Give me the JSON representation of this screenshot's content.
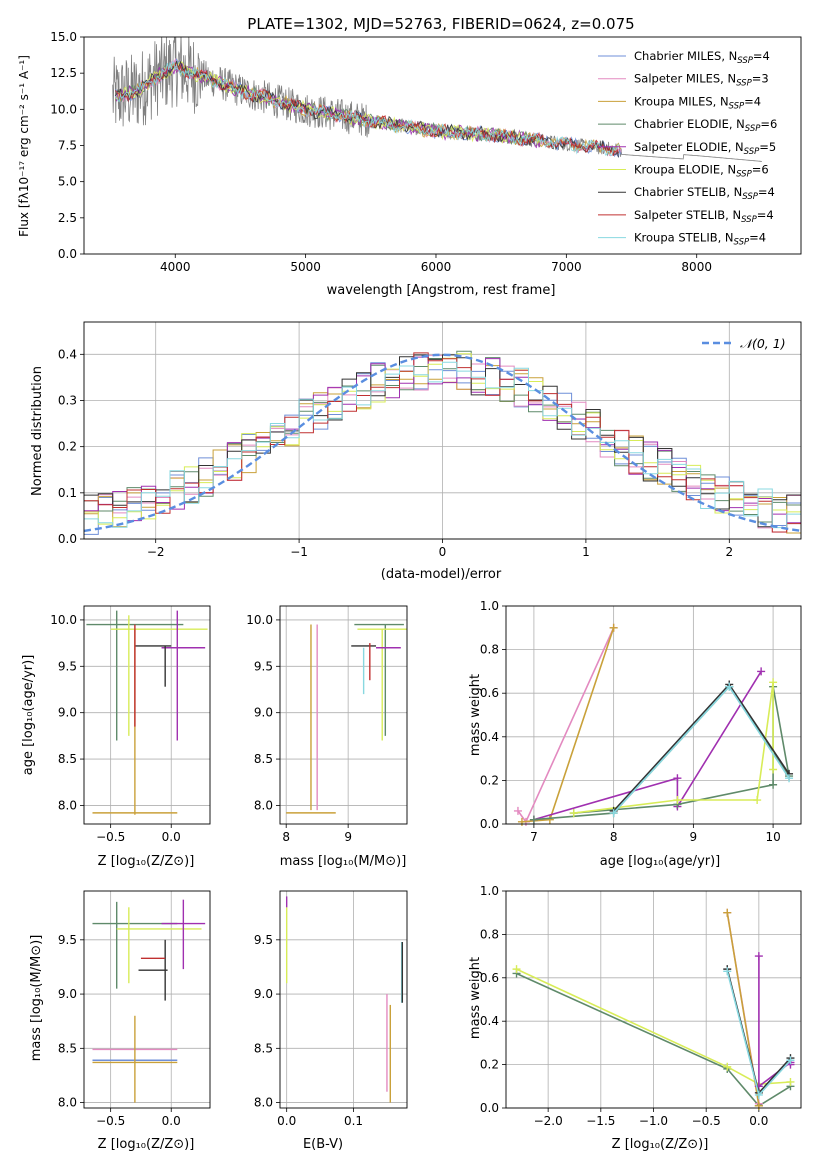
{
  "colors": {
    "Chabrier MILES": "#6f8fd8",
    "Salpeter MILES": "#e38ac0",
    "Kroupa MILES": "#c9a13a",
    "Chabrier ELODIE": "#5f8a6a",
    "Salpeter ELODIE": "#a030b0",
    "Kroupa ELODIE": "#d8ec58",
    "Chabrier STELIB": "#333333",
    "Salpeter STELIB": "#c03030",
    "Kroupa STELIB": "#88d8e0",
    "data": "#7f7f7f",
    "normal": "#5a8ee0"
  },
  "chart_data": [
    {
      "type": "line",
      "title": "PLATE=1302, MJD=52763, FIBERID=0624, z=0.075",
      "xlabel": "wavelength [Angstrom, rest frame]",
      "ylabel": "Flux [fλ10⁻¹⁷ erg cm⁻² s⁻¹ A⁻¹]",
      "xlim": [
        3300,
        8800
      ],
      "ylim": [
        0,
        15
      ],
      "xticks": [
        "4000",
        "5000",
        "6000",
        "7000",
        "8000"
      ],
      "yticks": [
        "0.0",
        "2.5",
        "5.0",
        "7.5",
        "10.0",
        "12.5",
        "15.0"
      ],
      "legend_position": "top-right",
      "legend": [
        {
          "name": "Chabrier MILES, N",
          "sub": "SSP",
          "tail": "=4"
        },
        {
          "name": "Salpeter MILES, N",
          "sub": "SSP",
          "tail": "=3"
        },
        {
          "name": "Kroupa MILES, N",
          "sub": "SSP",
          "tail": "=4"
        },
        {
          "name": "Chabrier ELODIE, N",
          "sub": "SSP",
          "tail": "=6"
        },
        {
          "name": "Salpeter ELODIE, N",
          "sub": "SSP",
          "tail": "=5"
        },
        {
          "name": "Kroupa ELODIE, N",
          "sub": "SSP",
          "tail": "=6"
        },
        {
          "name": "Chabrier STELIB, N",
          "sub": "SSP",
          "tail": "=4"
        },
        {
          "name": "Salpeter STELIB, N",
          "sub": "SSP",
          "tail": "=4"
        },
        {
          "name": "Kroupa STELIB, N",
          "sub": "SSP",
          "tail": "=4"
        }
      ],
      "model_envelope": {
        "x": [
          3500,
          3700,
          3850,
          4000,
          4100,
          4300,
          4500,
          5000,
          5500,
          6000,
          6500,
          7000,
          7400,
          8000,
          8500
        ],
        "y": [
          10.8,
          11.2,
          12.2,
          13.0,
          12.6,
          12.0,
          11.3,
          10.0,
          9.2,
          8.5,
          8.2,
          7.6,
          7.2,
          6.8,
          6.4
        ]
      }
    },
    {
      "type": "line",
      "xlabel": "(data-model)/error",
      "ylabel": "Normed distribution",
      "xlim": [
        -2.5,
        2.5
      ],
      "ylim": [
        0,
        0.47
      ],
      "xticks": [
        "−2",
        "−1",
        "0",
        "1",
        "2"
      ],
      "yticks": [
        "0.0",
        "0.1",
        "0.2",
        "0.3",
        "0.4"
      ],
      "legend_position": "top-right",
      "legend": [
        {
          "name": "𝒩(0, 1)"
        }
      ],
      "series": [
        {
          "type": "gaussian",
          "mean": 0,
          "sigma": 1
        }
      ]
    },
    {
      "type": "scatter",
      "xlabel": "Z [log₁₀(Z/Z⊙)]",
      "ylabel": "age  [log₁₀(age/yr)]",
      "xlim": [
        -0.72,
        0.32
      ],
      "ylim": [
        7.8,
        10.15
      ],
      "xticks": [
        "−0.5",
        "0.0"
      ],
      "yticks": [
        "8.0",
        "8.5",
        "9.0",
        "9.5",
        "10.0"
      ],
      "points": [
        {
          "model": "Chabrier ELODIE",
          "x": -0.3,
          "y": 9.95,
          "xerr": 0.4,
          "yerr": 0.0
        },
        {
          "model": "Chabrier ELODIE",
          "x": -0.45,
          "y": 9.4,
          "xerr": 0.0,
          "yerr": 0.7
        },
        {
          "model": "Kroupa ELODIE",
          "x": -0.1,
          "y": 9.9,
          "xerr": 0.4,
          "yerr": 0.0
        },
        {
          "model": "Kroupa ELODIE",
          "x": -0.35,
          "y": 9.4,
          "xerr": 0.0,
          "yerr": 0.65
        },
        {
          "model": "Salpeter ELODIE",
          "x": 0.1,
          "y": 9.7,
          "xerr": 0.18,
          "yerr": 0.0
        },
        {
          "model": "Salpeter ELODIE",
          "x": 0.05,
          "y": 9.4,
          "xerr": 0.0,
          "yerr": 0.7
        },
        {
          "model": "Chabrier STELIB",
          "x": -0.15,
          "y": 9.72,
          "xerr": 0.15,
          "yerr": 0.0
        },
        {
          "model": "Chabrier STELIB",
          "x": -0.05,
          "y": 9.5,
          "xerr": 0.0,
          "yerr": 0.22
        },
        {
          "model": "Kroupa MILES",
          "x": -0.3,
          "y": 7.92,
          "xerr": 0.35,
          "yerr": 0.0
        },
        {
          "model": "Kroupa MILES",
          "x": -0.3,
          "y": 8.9,
          "xerr": 0.0,
          "yerr": 1.0
        },
        {
          "model": "Salpeter STELIB",
          "x": -0.3,
          "y": 9.4,
          "xerr": 0.0,
          "yerr": 0.55
        }
      ]
    },
    {
      "type": "scatter",
      "xlabel": "mass [log₁₀(M/M⊙)]",
      "ylabel": "",
      "xlim": [
        7.9,
        9.95
      ],
      "ylim": [
        7.8,
        10.15
      ],
      "xticks": [
        "8",
        "9"
      ],
      "yticks": [
        "8.0",
        "8.5",
        "9.0",
        "9.5",
        "10.0"
      ],
      "points": [
        {
          "model": "Chabrier ELODIE",
          "x": 9.5,
          "y": 9.95,
          "xerr": 0.4,
          "yerr": 0.0
        },
        {
          "model": "Chabrier ELODIE",
          "x": 9.6,
          "y": 9.35,
          "xerr": 0.0,
          "yerr": 0.6
        },
        {
          "model": "Kroupa ELODIE",
          "x": 9.55,
          "y": 9.9,
          "xerr": 0.4,
          "yerr": 0.0
        },
        {
          "model": "Kroupa ELODIE",
          "x": 9.55,
          "y": 9.3,
          "xerr": 0.0,
          "yerr": 0.6
        },
        {
          "model": "Salpeter ELODIE",
          "x": 9.65,
          "y": 9.7,
          "xerr": 0.2,
          "yerr": 0.0
        },
        {
          "model": "Chabrier STELIB",
          "x": 9.25,
          "y": 9.72,
          "xerr": 0.2,
          "yerr": 0.0
        },
        {
          "model": "Kroupa STELIB",
          "x": 9.25,
          "y": 9.45,
          "xerr": 0.0,
          "yerr": 0.25
        },
        {
          "model": "Salpeter STELIB",
          "x": 9.35,
          "y": 9.55,
          "xerr": 0.0,
          "yerr": 0.2
        },
        {
          "model": "Kroupa MILES",
          "x": 8.4,
          "y": 7.92,
          "xerr": 0.4,
          "yerr": 0.0
        },
        {
          "model": "Kroupa MILES",
          "x": 8.4,
          "y": 8.95,
          "xerr": 0.0,
          "yerr": 1.0
        },
        {
          "model": "Salpeter MILES",
          "x": 8.5,
          "y": 8.95,
          "xerr": 0.0,
          "yerr": 1.0
        }
      ]
    },
    {
      "type": "line",
      "xlabel": "age  [log₁₀(age/yr)]",
      "ylabel": "mass weight",
      "xlim": [
        6.65,
        10.35
      ],
      "ylim": [
        0,
        1.0
      ],
      "xticks": [
        "7",
        "8",
        "9",
        "10"
      ],
      "yticks": [
        "0.0",
        "0.2",
        "0.4",
        "0.6",
        "0.8",
        "1.0"
      ],
      "series": [
        {
          "name": "Salpeter MILES",
          "x": [
            6.8,
            6.9,
            8.0
          ],
          "y": [
            0.06,
            0.01,
            0.9
          ]
        },
        {
          "name": "Kroupa MILES",
          "x": [
            6.85,
            7.2,
            8.0
          ],
          "y": [
            0.01,
            0.02,
            0.9
          ]
        },
        {
          "name": "Salpeter ELODIE",
          "x": [
            7.0,
            8.8,
            8.8,
            9.85
          ],
          "y": [
            0.02,
            0.21,
            0.08,
            0.7
          ]
        },
        {
          "name": "Chabrier ELODIE",
          "x": [
            7.0,
            8.0,
            9.45,
            10.2,
            10.0,
            10.0,
            8.8,
            7.5
          ],
          "y": [
            0.02,
            0.05,
            0.63,
            0.22,
            0.63,
            0.18,
            0.09,
            0.05
          ]
        },
        {
          "name": "Kroupa ELODIE",
          "x": [
            7.5,
            8.8,
            9.8,
            10.0,
            10.0
          ],
          "y": [
            0.05,
            0.11,
            0.11,
            0.65,
            0.25
          ]
        },
        {
          "name": "Chabrier STELIB",
          "x": [
            8.0,
            9.45,
            10.2
          ],
          "y": [
            0.06,
            0.64,
            0.23
          ]
        },
        {
          "name": "Kroupa STELIB",
          "x": [
            8.0,
            9.45,
            10.2
          ],
          "y": [
            0.05,
            0.63,
            0.21
          ]
        }
      ]
    },
    {
      "type": "scatter",
      "xlabel": "Z [log₁₀(Z/Z⊙)]",
      "ylabel": "mass [log₁₀(M/M⊙)]",
      "xlim": [
        -0.72,
        0.32
      ],
      "ylim": [
        7.95,
        9.95
      ],
      "xticks": [
        "−0.5",
        "0.0"
      ],
      "yticks": [
        "8.0",
        "8.5",
        "9.0",
        "9.5"
      ],
      "points": [
        {
          "model": "Chabrier ELODIE",
          "x": -0.3,
          "y": 9.65,
          "xerr": 0.35,
          "yerr": 0.0
        },
        {
          "model": "Chabrier ELODIE",
          "x": -0.45,
          "y": 9.45,
          "xerr": 0.0,
          "yerr": 0.4
        },
        {
          "model": "Kroupa ELODIE",
          "x": -0.1,
          "y": 9.6,
          "xerr": 0.35,
          "yerr": 0.0
        },
        {
          "model": "Kroupa ELODIE",
          "x": -0.35,
          "y": 9.45,
          "xerr": 0.0,
          "yerr": 0.35
        },
        {
          "model": "Salpeter ELODIE",
          "x": 0.1,
          "y": 9.65,
          "xerr": 0.18,
          "yerr": 0.0
        },
        {
          "model": "Salpeter ELODIE",
          "x": 0.1,
          "y": 9.55,
          "xerr": 0.0,
          "yerr": 0.32
        },
        {
          "model": "Chabrier STELIB",
          "x": -0.15,
          "y": 9.22,
          "xerr": 0.12,
          "yerr": 0.0
        },
        {
          "model": "Chabrier STELIB",
          "x": -0.05,
          "y": 9.22,
          "xerr": 0.0,
          "yerr": 0.28
        },
        {
          "model": "Salpeter STELIB",
          "x": -0.15,
          "y": 9.33,
          "xerr": 0.1,
          "yerr": 0.0
        },
        {
          "model": "Salpeter MILES",
          "x": -0.3,
          "y": 8.49,
          "xerr": 0.35,
          "yerr": 0.0
        },
        {
          "model": "Chabrier MILES",
          "x": -0.3,
          "y": 8.39,
          "xerr": 0.35,
          "yerr": 0.0
        },
        {
          "model": "Kroupa MILES",
          "x": -0.3,
          "y": 8.37,
          "xerr": 0.35,
          "yerr": 0.0
        },
        {
          "model": "Kroupa MILES",
          "x": -0.3,
          "y": 8.4,
          "xerr": 0.0,
          "yerr": 0.4
        }
      ]
    },
    {
      "type": "scatter",
      "xlabel": "E(B-V)",
      "ylabel": "",
      "xlim": [
        -0.01,
        0.18
      ],
      "ylim": [
        7.95,
        9.95
      ],
      "xticks": [
        "0.0",
        "0.1"
      ],
      "yticks": [
        "8.0",
        "8.5",
        "9.0",
        "9.5"
      ],
      "points": [
        {
          "model": "Kroupa ELODIE",
          "x": 0.0,
          "y": 9.45,
          "xerr": 0.0,
          "yerr": 0.35
        },
        {
          "model": "Salpeter ELODIE",
          "x": 0.0,
          "y": 9.85,
          "xerr": 0.0,
          "yerr": 0.05
        },
        {
          "model": "Salpeter MILES",
          "x": 0.15,
          "y": 8.55,
          "xerr": 0.0,
          "yerr": 0.45
        },
        {
          "model": "Kroupa MILES",
          "x": 0.155,
          "y": 8.45,
          "xerr": 0.0,
          "yerr": 0.45
        },
        {
          "model": "Kroupa STELIB",
          "x": 0.172,
          "y": 9.2,
          "xerr": 0.0,
          "yerr": 0.28
        },
        {
          "model": "Chabrier STELIB",
          "x": 0.173,
          "y": 9.2,
          "xerr": 0.0,
          "yerr": 0.28
        }
      ]
    },
    {
      "type": "line",
      "xlabel": "Z [log₁₀(Z/Z⊙)]",
      "ylabel": "mass weight",
      "xlim": [
        -2.4,
        0.4
      ],
      "ylim": [
        0,
        1.0
      ],
      "xticks": [
        "−2.0",
        "−1.5",
        "−1.0",
        "−0.5",
        "0.0"
      ],
      "yticks": [
        "0.0",
        "0.2",
        "0.4",
        "0.6",
        "0.8",
        "1.0"
      ],
      "series": [
        {
          "name": "Chabrier ELODIE",
          "x": [
            -2.3,
            -0.3,
            0.0,
            0.3
          ],
          "y": [
            0.62,
            0.18,
            0.01,
            0.1
          ]
        },
        {
          "name": "Kroupa ELODIE",
          "x": [
            -2.3,
            -0.3,
            0.0,
            0.3
          ],
          "y": [
            0.64,
            0.19,
            0.11,
            0.12
          ]
        },
        {
          "name": "Salpeter MILES",
          "x": [
            -0.3,
            0.0
          ],
          "y": [
            0.9,
            0.02
          ]
        },
        {
          "name": "Kroupa MILES",
          "x": [
            -0.3,
            0.0
          ],
          "y": [
            0.9,
            0.01
          ]
        },
        {
          "name": "Salpeter ELODIE",
          "x": [
            0.0,
            0.0,
            0.3,
            0.3
          ],
          "y": [
            0.7,
            0.1,
            0.21,
            0.2
          ]
        },
        {
          "name": "Chabrier STELIB",
          "x": [
            -0.3,
            0.0,
            0.3
          ],
          "y": [
            0.64,
            0.07,
            0.23
          ]
        },
        {
          "name": "Kroupa STELIB",
          "x": [
            -0.3,
            0.0,
            0.3
          ],
          "y": [
            0.63,
            0.06,
            0.22
          ]
        }
      ]
    }
  ]
}
